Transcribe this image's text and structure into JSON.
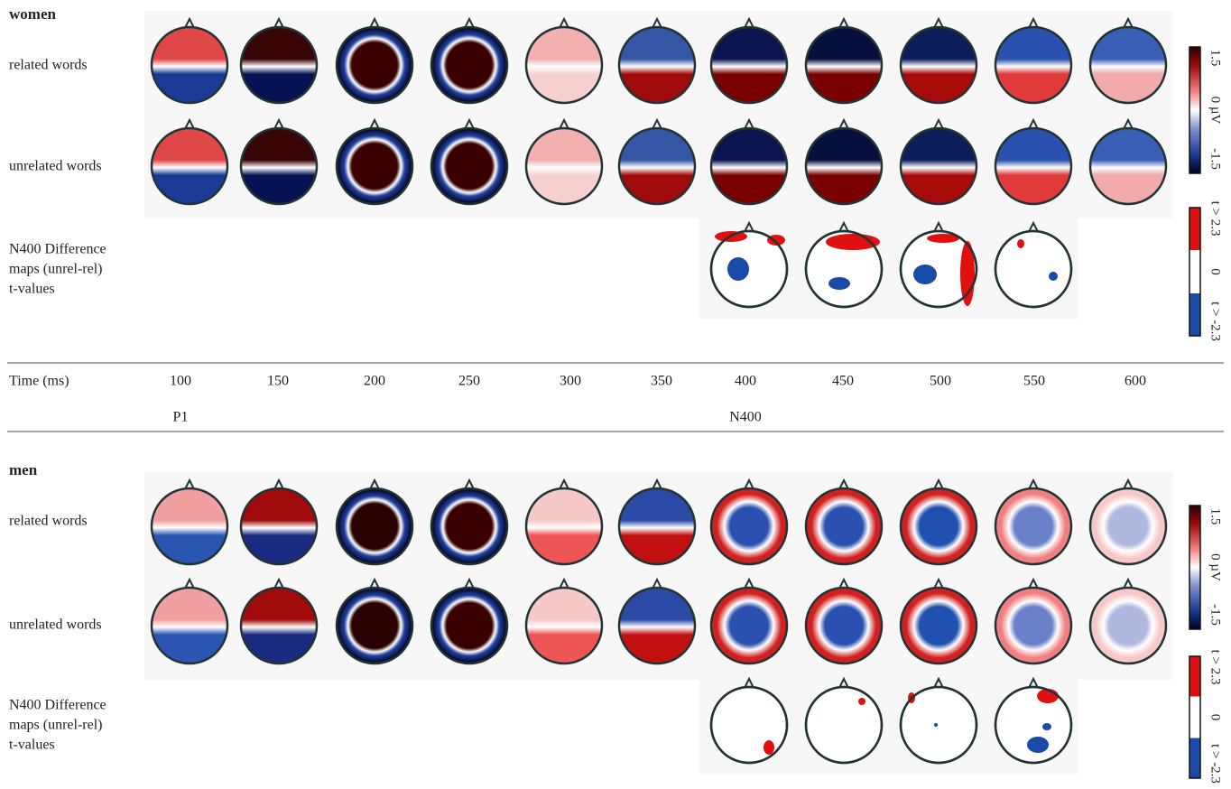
{
  "panels": [
    {
      "title": "women",
      "rows": [
        "related words",
        "unrelated words"
      ],
      "difference_label": [
        "N400 Difference",
        "maps  (unrel-rel)",
        "t-values"
      ],
      "uv_scale": [
        "1.5",
        "0 µV",
        "-1.5"
      ],
      "t_scale": [
        "t > 2.3",
        "0",
        "t > -2.3"
      ]
    },
    {
      "title": "men",
      "rows": [
        "related words",
        "unrelated words"
      ],
      "difference_label": [
        "N400 Difference",
        "maps  (unrel-rel)",
        "t-values"
      ],
      "uv_scale": [
        "1.5",
        "0 µV",
        "-1.5"
      ],
      "t_scale": [
        "t > 2.3",
        "0",
        "t > -2.3"
      ]
    }
  ],
  "time_axis": {
    "label": "Time (ms)",
    "ticks": [
      "100",
      "150",
      "200",
      "250",
      "300",
      "350",
      "400",
      "450",
      "500",
      "550",
      "600"
    ],
    "components": [
      "P1",
      "N400"
    ]
  }
}
